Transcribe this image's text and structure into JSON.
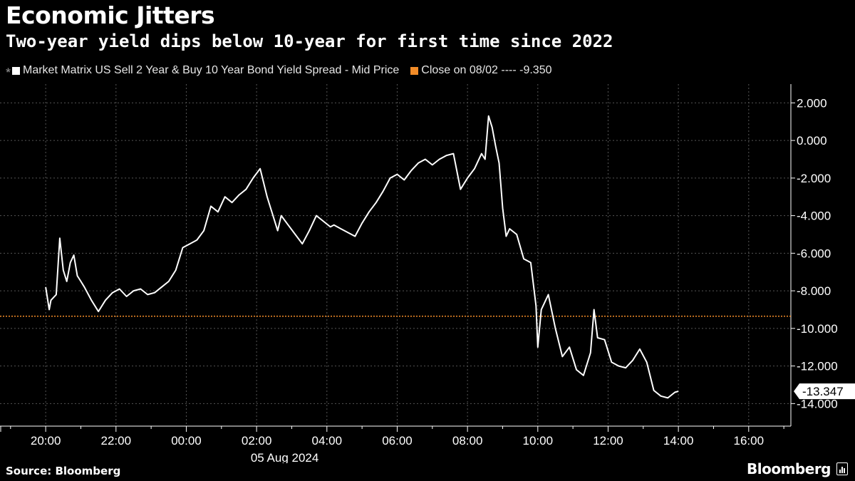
{
  "header": {
    "title": "Economic Jitters",
    "subtitle": "Two-year yield dips below 10-year for first time since 2022"
  },
  "legend": {
    "series_label": "Market Matrix US Sell 2 Year & Buy 10 Year Bond Yield Spread - Mid Price",
    "close_label": "Close on 08/02 ---- -9.350"
  },
  "footer": {
    "source": "Source: Bloomberg",
    "brand": "Bloomberg"
  },
  "colors": {
    "background": "#000000",
    "series": "#ffffff",
    "reference": "#f28c28",
    "grid": "#555555"
  },
  "chart_data": {
    "type": "line",
    "ylim": [
      -15.2,
      3.0
    ],
    "yticks": [
      2,
      0,
      -2,
      -4,
      -6,
      -8,
      -10,
      -12,
      -14
    ],
    "ytick_labels": [
      "2.000",
      "0.000",
      "-2.000",
      "-4.000",
      "-6.000",
      "-8.000",
      "-10.000",
      "-12.000",
      "-14.000"
    ],
    "x_unit": "hours from 05 Aug 2024 00:00 (ET)",
    "xlim": [
      -5.3,
      17.2
    ],
    "xticks": [
      -4,
      -2,
      0,
      2,
      4,
      6,
      8,
      10,
      12,
      14,
      16
    ],
    "xtick_labels": [
      "20:00",
      "22:00",
      "00:00",
      "02:00",
      "04:00",
      "06:00",
      "08:00",
      "10:00",
      "12:00",
      "14:00",
      "16:00"
    ],
    "date_label": "05 Aug 2024",
    "date_at": 2.8,
    "reference_line": {
      "value": -9.35,
      "label": "Close on 08/02"
    },
    "last_value": {
      "value": -13.347,
      "label": "-13.347"
    },
    "series": [
      {
        "x": [
          -4.0,
          -3.9,
          -3.85,
          -3.7,
          -3.6,
          -3.5,
          -3.4,
          -3.3,
          -3.2,
          -3.1,
          -3.0,
          -2.9,
          -2.7,
          -2.5,
          -2.3,
          -2.1,
          -1.9,
          -1.7,
          -1.5,
          -1.3,
          -1.1,
          -0.9,
          -0.7,
          -0.5,
          -0.3,
          -0.1,
          0.1,
          0.3,
          0.5,
          0.7,
          0.9,
          1.1,
          1.3,
          1.5,
          1.7,
          1.9,
          2.1,
          2.3,
          2.5,
          2.6,
          2.7,
          2.9,
          3.1,
          3.3,
          3.5,
          3.7,
          3.9,
          4.1,
          4.2,
          4.4,
          4.6,
          4.8,
          5.0,
          5.2,
          5.4,
          5.6,
          5.8,
          6.0,
          6.2,
          6.4,
          6.6,
          6.8,
          7.0,
          7.2,
          7.4,
          7.6,
          7.8,
          8.0,
          8.2,
          8.4,
          8.5,
          8.6,
          8.7,
          8.8,
          8.9,
          9.0,
          9.1,
          9.2,
          9.4,
          9.6,
          9.8,
          9.95,
          10.0,
          10.1,
          10.3,
          10.5,
          10.7,
          10.9,
          11.1,
          11.3,
          11.5,
          11.6,
          11.7,
          11.9,
          12.1,
          12.3,
          12.5,
          12.7,
          12.9,
          13.1,
          13.3,
          13.5,
          13.7,
          13.9,
          14.0
        ],
        "values": [
          -7.8,
          -9.0,
          -8.5,
          -8.2,
          -5.2,
          -6.9,
          -7.5,
          -6.5,
          -6.1,
          -7.2,
          -7.5,
          -7.8,
          -8.5,
          -9.1,
          -8.5,
          -8.1,
          -7.9,
          -8.3,
          -8.0,
          -7.9,
          -8.2,
          -8.1,
          -7.8,
          -7.5,
          -6.9,
          -5.7,
          -5.5,
          -5.3,
          -4.8,
          -3.5,
          -3.8,
          -3.0,
          -3.3,
          -2.9,
          -2.6,
          -2.0,
          -1.5,
          -3.0,
          -4.2,
          -4.8,
          -4.0,
          -4.5,
          -5.0,
          -5.5,
          -4.8,
          -4.0,
          -4.3,
          -4.6,
          -4.5,
          -4.7,
          -4.9,
          -5.1,
          -4.4,
          -3.8,
          -3.3,
          -2.7,
          -2.0,
          -1.8,
          -2.1,
          -1.6,
          -1.2,
          -1.0,
          -1.3,
          -1.0,
          -0.8,
          -0.7,
          -2.6,
          -2.0,
          -1.5,
          -0.7,
          -1.0,
          1.3,
          0.7,
          -0.3,
          -1.2,
          -3.6,
          -5.1,
          -4.7,
          -5.0,
          -6.3,
          -6.5,
          -8.8,
          -11.0,
          -9.0,
          -8.2,
          -10.0,
          -11.5,
          -11.0,
          -12.2,
          -12.5,
          -11.3,
          -9.0,
          -10.5,
          -10.6,
          -11.8,
          -12.0,
          -12.1,
          -11.7,
          -11.1,
          -11.8,
          -13.3,
          -13.6,
          -13.7,
          -13.4,
          -13.347
        ]
      }
    ]
  }
}
